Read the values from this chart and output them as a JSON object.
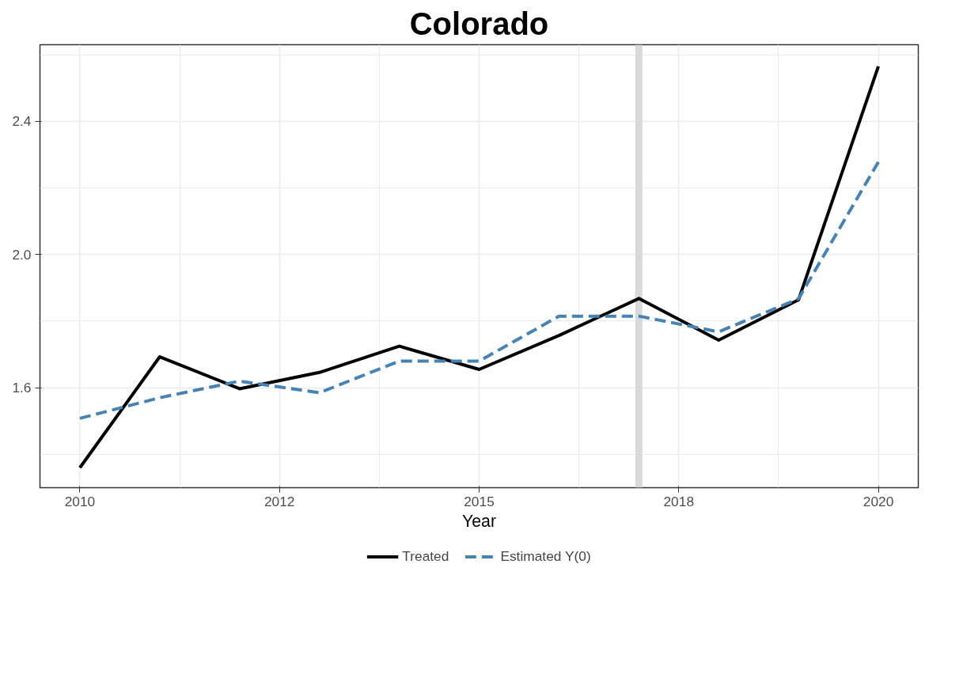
{
  "chart_data": {
    "type": "line",
    "title": "Colorado",
    "xlabel": "Year",
    "x": [
      2010,
      2011,
      2012,
      2013,
      2014,
      2015,
      2016,
      2017,
      2018,
      2019,
      2020
    ],
    "series": [
      {
        "name": "Treated",
        "color": "#000000",
        "line_style": "solid",
        "values": [
          1.36,
          1.693,
          1.597,
          1.646,
          1.725,
          1.655,
          1.757,
          1.868,
          1.743,
          1.864,
          2.565
        ]
      },
      {
        "name": "Estimated Y(0)",
        "color": "#4682b4",
        "line_style": "dashed",
        "values": [
          1.508,
          1.57,
          1.62,
          1.585,
          1.68,
          1.68,
          1.815,
          1.815,
          1.768,
          1.867,
          2.278
        ]
      }
    ],
    "xlim": [
      2009.5,
      2020.5
    ],
    "ylim": [
      1.3,
      2.63
    ],
    "xticks": [
      {
        "value": 2010,
        "label": "2010"
      },
      {
        "value": 2012.5,
        "label": "2012"
      },
      {
        "value": 2015,
        "label": "2015"
      },
      {
        "value": 2017.5,
        "label": "2018"
      },
      {
        "value": 2020,
        "label": "2020"
      }
    ],
    "yticks": [
      {
        "value": 1.6,
        "label": "1.6"
      },
      {
        "value": 2.0,
        "label": "2.0"
      },
      {
        "value": 2.4,
        "label": "2.4"
      }
    ],
    "ref_lines": [
      {
        "axis": "x",
        "value": 2017,
        "label": null,
        "color": "#d9d9d9"
      }
    ],
    "grid": true,
    "legend": "bottom",
    "marker": "none"
  }
}
